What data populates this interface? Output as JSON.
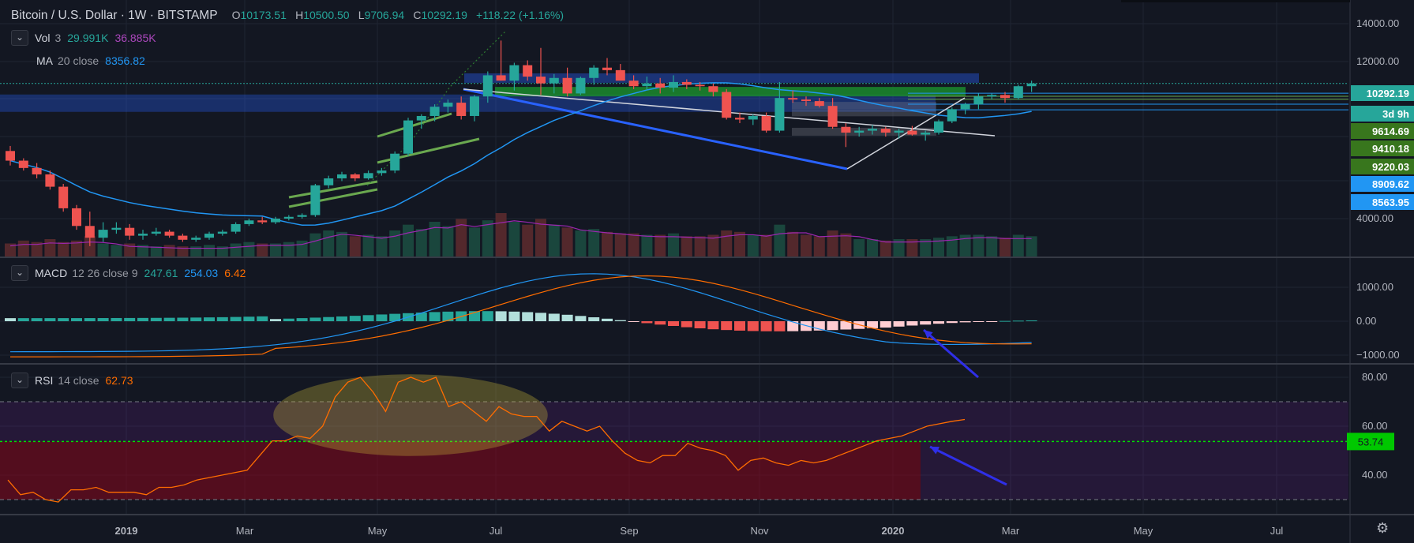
{
  "header": {
    "symbol": "Bitcoin / U.S. Dollar",
    "interval": "1W",
    "exchange": "BITSTAMP",
    "open_label": "O",
    "open": "10173.51",
    "high_label": "H",
    "high": "10500.50",
    "low_label": "L",
    "low": "9706.94",
    "close_label": "C",
    "close": "10292.19",
    "change": "+118.22 (+1.16%)"
  },
  "legends": {
    "vol": {
      "name": "Vol",
      "param": "3",
      "v1": "29.991K",
      "v2": "36.885K"
    },
    "ma": {
      "name": "MA",
      "param": "20 close",
      "value": "8356.82"
    },
    "macd": {
      "name": "MACD",
      "param": "12 26 close 9",
      "v1": "247.61",
      "v2": "254.03",
      "v3": "6.42"
    },
    "rsi": {
      "name": "RSI",
      "param": "14 close",
      "value": "62.73"
    }
  },
  "toggle_glyph": "⌄",
  "settings_icon": "gear-icon",
  "settings_glyph": "⚙",
  "colors": {
    "background": "#131722",
    "up": "#26a69a",
    "down": "#ef5350",
    "ma": "#2196f3",
    "macd_signal": "#ff6d00",
    "rsi_line": "#ff6d00",
    "volume_ma": "#9c27b0",
    "zone_blue": "#2962ff",
    "zone_green": "#1b8a2d",
    "trend_green": "#6aa84f",
    "arrow": "#2f2fe8",
    "ellipse": "#c9b83a"
  },
  "chart_data": [
    {
      "type": "candlestick",
      "title": "Bitcoin / U.S. Dollar 1W BITSTAMP",
      "x_ticks": [
        "2019",
        "Mar",
        "May",
        "Jul",
        "Sep",
        "Nov",
        "2020",
        "Mar",
        "May",
        "Jul"
      ],
      "y_scale": "log",
      "y_ticks": [
        "14000.00",
        "12000.00",
        "4000.00"
      ],
      "ylim": [
        3200,
        14500
      ],
      "price_labels": [
        "10292.19",
        "3d 9h",
        "9614.69",
        "9410.18",
        "9220.03",
        "8909.62",
        "8563.95"
      ],
      "ma": {
        "name": "MA 20 close",
        "last": 8356.82
      },
      "candles_ohlc": [
        [
          6420,
          6650,
          5800,
          6000
        ],
        [
          6000,
          6100,
          5600,
          5700
        ],
        [
          5700,
          5900,
          5300,
          5450
        ],
        [
          5450,
          5600,
          4900,
          5000
        ],
        [
          5000,
          5100,
          4200,
          4300
        ],
        [
          4300,
          4400,
          3700,
          3800
        ],
        [
          3800,
          4200,
          3300,
          3500
        ],
        [
          3500,
          3900,
          3400,
          3700
        ],
        [
          3700,
          3900,
          3600,
          3750
        ],
        [
          3750,
          3850,
          3450,
          3550
        ],
        [
          3550,
          3700,
          3450,
          3600
        ],
        [
          3600,
          3750,
          3550,
          3650
        ],
        [
          3650,
          3700,
          3500,
          3550
        ],
        [
          3550,
          3600,
          3400,
          3450
        ],
        [
          3450,
          3550,
          3400,
          3500
        ],
        [
          3500,
          3650,
          3450,
          3600
        ],
        [
          3600,
          3700,
          3550,
          3650
        ],
        [
          3650,
          3900,
          3600,
          3850
        ],
        [
          3850,
          4000,
          3800,
          3950
        ],
        [
          3950,
          4050,
          3850,
          3900
        ],
        [
          3900,
          4050,
          3850,
          4000
        ],
        [
          4000,
          4100,
          3950,
          4050
        ],
        [
          4050,
          4150,
          4000,
          4100
        ],
        [
          4100,
          5100,
          4050,
          5050
        ],
        [
          5050,
          5400,
          4950,
          5300
        ],
        [
          5300,
          5550,
          5200,
          5450
        ],
        [
          5450,
          5500,
          5200,
          5300
        ],
        [
          5300,
          5600,
          5250,
          5500
        ],
        [
          5500,
          5700,
          5400,
          5600
        ],
        [
          5600,
          6400,
          5500,
          6300
        ],
        [
          6300,
          8100,
          6200,
          7950
        ],
        [
          7950,
          8300,
          7500,
          8200
        ],
        [
          8200,
          8900,
          7900,
          8750
        ],
        [
          8750,
          9200,
          8400,
          9000
        ],
        [
          9000,
          9400,
          8000,
          8200
        ],
        [
          8200,
          9500,
          7900,
          9400
        ],
        [
          9400,
          11200,
          9000,
          10900
        ],
        [
          10900,
          13900,
          10500,
          10500
        ],
        [
          10500,
          11900,
          9800,
          11700
        ],
        [
          11700,
          12100,
          10500,
          10800
        ],
        [
          10800,
          13200,
          9500,
          10300
        ],
        [
          10300,
          11000,
          9600,
          10700
        ],
        [
          10700,
          11500,
          9400,
          9600
        ],
        [
          9600,
          10800,
          9500,
          10700
        ],
        [
          10700,
          11700,
          10200,
          11500
        ],
        [
          11500,
          12300,
          10900,
          11300
        ],
        [
          11300,
          11800,
          10600,
          10500
        ],
        [
          10500,
          10900,
          9900,
          10100
        ],
        [
          10100,
          10800,
          9800,
          10300
        ],
        [
          10300,
          10700,
          9600,
          10000
        ],
        [
          10000,
          10900,
          9700,
          10400
        ],
        [
          10400,
          10600,
          9900,
          10200
        ],
        [
          10200,
          10400,
          9800,
          10100
        ],
        [
          10100,
          10300,
          9400,
          9700
        ],
        [
          9700,
          9900,
          8000,
          8100
        ],
        [
          8100,
          8400,
          7800,
          8000
        ],
        [
          8000,
          8300,
          7700,
          8200
        ],
        [
          8200,
          8400,
          7300,
          7400
        ],
        [
          7400,
          10400,
          7300,
          9300
        ],
        [
          9300,
          9800,
          9000,
          9200
        ],
        [
          9200,
          9400,
          8800,
          9100
        ],
        [
          9100,
          9300,
          8700,
          8800
        ],
        [
          8800,
          9300,
          7500,
          7600
        ],
        [
          7600,
          7800,
          6600,
          7300
        ],
        [
          7300,
          7600,
          7100,
          7400
        ],
        [
          7400,
          7700,
          7200,
          7500
        ],
        [
          7500,
          7600,
          7100,
          7300
        ],
        [
          7300,
          7500,
          7000,
          7400
        ],
        [
          7400,
          7650,
          7150,
          7200
        ],
        [
          7200,
          7400,
          6900,
          7300
        ],
        [
          7300,
          8000,
          7200,
          7900
        ],
        [
          7900,
          8700,
          7800,
          8600
        ],
        [
          8600,
          9000,
          8300,
          8900
        ],
        [
          8900,
          9600,
          8600,
          9400
        ],
        [
          9400,
          9600,
          9200,
          9500
        ],
        [
          9500,
          9700,
          9000,
          9300
        ],
        [
          9300,
          10200,
          9200,
          10100
        ],
        [
          10100,
          10500,
          9700,
          10292
        ]
      ]
    },
    {
      "type": "bar",
      "title": "Vol 3",
      "values": [
        9,
        11,
        10,
        12,
        10,
        11,
        14,
        9,
        8,
        9,
        8,
        7,
        8,
        7,
        7,
        8,
        7,
        9,
        10,
        9,
        9,
        10,
        11,
        16,
        18,
        17,
        14,
        15,
        14,
        18,
        22,
        19,
        24,
        21,
        26,
        20,
        25,
        30,
        24,
        22,
        26,
        22,
        20,
        18,
        19,
        17,
        16,
        16,
        15,
        15,
        16,
        14,
        14,
        15,
        18,
        17,
        15,
        15,
        22,
        17,
        15,
        14,
        18,
        16,
        12,
        12,
        11,
        12,
        12,
        12,
        13,
        14,
        15,
        15,
        14,
        13,
        15,
        14
      ]
    },
    {
      "type": "bar",
      "title": "MACD 12 26 close 9",
      "ylim": [
        -1000,
        1000
      ],
      "y_ticks": [
        "1000.00",
        "0.00",
        "−1000.00"
      ]
    },
    {
      "type": "line",
      "title": "RSI 14 close",
      "ylim": [
        28,
        82
      ],
      "y_ticks": [
        "80.00",
        "60.00",
        "40.00"
      ],
      "marked_level": "53.74",
      "bands": [
        30,
        70
      ]
    }
  ]
}
